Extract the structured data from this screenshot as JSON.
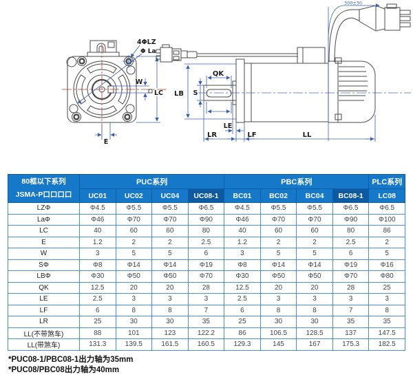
{
  "drawing": {
    "front_view": {
      "labels": {
        "holes": "4ΦLZ",
        "pilot": "Φ La",
        "keyway_width": "W",
        "frame": "LC",
        "offset": "E"
      }
    },
    "side_view": {
      "labels": {
        "key_length": "QK",
        "shaft_dia": "S",
        "body_dia": "LB",
        "le": "LE",
        "lr": "LR",
        "lf": "LF",
        "ll": "LL",
        "cable_length": "300±30"
      }
    }
  },
  "table": {
    "corner_line1": "80框以下系列",
    "corner_line2": "JSMA-P口口口口",
    "groups": [
      {
        "label": "PUC系列",
        "cols": 4
      },
      {
        "label": "PBC系列",
        "cols": 4
      },
      {
        "label": "PLC系列",
        "cols": 1
      }
    ],
    "columns": [
      "UC01",
      "UC02",
      "UC04",
      "UC08-1",
      "BC01",
      "BC02",
      "BC04",
      "BC08-1",
      "LC08"
    ],
    "highlight_col_indexes": [
      3,
      7
    ],
    "rows": [
      {
        "label": "LZΦ",
        "values": [
          "Φ4.5",
          "Φ5.5",
          "Φ5.5",
          "Φ6.5",
          "Φ4.5",
          "Φ5.5",
          "Φ5.5",
          "Φ6.5",
          "Φ6.5"
        ]
      },
      {
        "label": "LaΦ",
        "values": [
          "Φ46",
          "Φ70",
          "Φ70",
          "Φ90",
          "Φ46",
          "Φ70",
          "Φ70",
          "Φ90",
          "Φ100"
        ]
      },
      {
        "label": "LC",
        "values": [
          "40",
          "60",
          "60",
          "80",
          "40",
          "60",
          "60",
          "80",
          "86"
        ]
      },
      {
        "label": "E",
        "values": [
          "1.2",
          "2",
          "2",
          "2.5",
          "1.2",
          "2",
          "2",
          "2.5",
          "2"
        ]
      },
      {
        "label": "W",
        "values": [
          "3",
          "5",
          "5",
          "6",
          "3",
          "5",
          "5",
          "6",
          "5"
        ]
      },
      {
        "label": "SΦ",
        "values": [
          "Φ8",
          "Φ14",
          "Φ14",
          "Φ19",
          "Φ8",
          "Φ14",
          "Φ14",
          "Φ19",
          "Φ16"
        ]
      },
      {
        "label": "LBΦ",
        "values": [
          "Φ30",
          "Φ50",
          "Φ50",
          "Φ70",
          "Φ30",
          "Φ50",
          "Φ50",
          "Φ70",
          "Φ80"
        ]
      },
      {
        "label": "QK",
        "values": [
          "12.5",
          "20",
          "20",
          "28",
          "12.5",
          "20",
          "20",
          "28",
          "25"
        ]
      },
      {
        "label": "LE",
        "values": [
          "2.5",
          "3",
          "3",
          "3",
          "2.5",
          "3",
          "3",
          "3",
          "3"
        ]
      },
      {
        "label": "LF",
        "values": [
          "6",
          "8",
          "8",
          "7",
          "6",
          "8",
          "8",
          "7",
          "8"
        ]
      },
      {
        "label": "LR",
        "values": [
          "25",
          "30",
          "30",
          "35",
          "25",
          "30",
          "30",
          "35",
          "35"
        ]
      },
      {
        "label": "LL(不带煞车)",
        "values": [
          "88",
          "101",
          "123",
          "122.2",
          "86",
          "106.5",
          "128.5",
          "137",
          "147.5"
        ]
      },
      {
        "label": "LL(带煞车)",
        "values": [
          "131.3",
          "139.5",
          "161.5",
          "160.5",
          "129.3",
          "145",
          "167",
          "175.3",
          "182.5"
        ]
      }
    ]
  },
  "footnotes": {
    "line1": "*PUC08-1/PBC08-1出力轴为35mm",
    "line2": "*PUC08/PBC08出力轴为40mm"
  },
  "colors": {
    "header_blue": "#1678c8",
    "header_blue_dark": "#0d5aa0",
    "grid_border": "#4a90d3",
    "dimension_line": "#3a5fae",
    "centerline_red": "#c0392b",
    "outline": "#4a4a4a"
  }
}
